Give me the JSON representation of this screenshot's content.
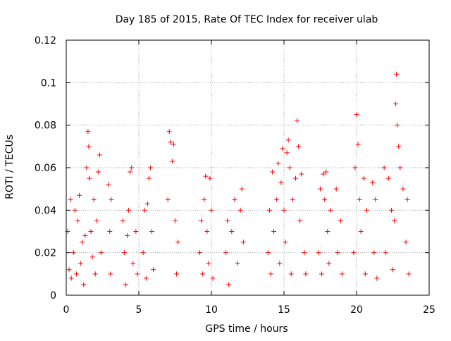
{
  "chart_data": {
    "type": "scatter",
    "title": "Day 185 of 2015, Rate Of TEC Index for receiver ulab",
    "xlabel": "GPS time / hours",
    "ylabel": "ROTI / TECUs",
    "xlim": [
      0,
      25
    ],
    "ylim": [
      0,
      0.12
    ],
    "x_ticks": [
      "0",
      "5",
      "10",
      "15",
      "20",
      "25"
    ],
    "y_ticks": [
      "0",
      "0.02",
      "0.04",
      "0.06",
      "0.08",
      "0.1",
      "0.12"
    ],
    "grid": true,
    "legend": "none",
    "marker": "plus",
    "colors": {
      "series": "#ff0000",
      "grid": "#a0a0a0",
      "axes": "#000000"
    },
    "series": [
      {
        "points": [
          [
            0.1,
            0.03
          ],
          [
            0.2,
            0.012
          ],
          [
            0.3,
            0.045
          ],
          [
            0.35,
            0.008
          ],
          [
            0.5,
            0.02
          ],
          [
            0.6,
            0.04
          ],
          [
            0.7,
            0.01
          ],
          [
            0.8,
            0.035
          ],
          [
            0.9,
            0.047
          ],
          [
            1.0,
            0.015
          ],
          [
            1.1,
            0.025
          ],
          [
            1.2,
            0.005
          ],
          [
            1.3,
            0.028
          ],
          [
            1.4,
            0.06
          ],
          [
            1.5,
            0.077
          ],
          [
            1.55,
            0.07
          ],
          [
            1.6,
            0.055
          ],
          [
            1.7,
            0.03
          ],
          [
            1.8,
            0.018
          ],
          [
            1.9,
            0.045
          ],
          [
            2.0,
            0.01
          ],
          [
            2.1,
            0.035
          ],
          [
            2.2,
            0.058
          ],
          [
            2.3,
            0.066
          ],
          [
            2.4,
            0.02
          ],
          [
            2.9,
            0.052
          ],
          [
            3.0,
            0.03
          ],
          [
            3.05,
            0.01
          ],
          [
            3.1,
            0.045
          ],
          [
            3.9,
            0.035
          ],
          [
            4.0,
            0.02
          ],
          [
            4.1,
            0.005
          ],
          [
            4.2,
            0.028
          ],
          [
            4.3,
            0.04
          ],
          [
            4.4,
            0.058
          ],
          [
            4.5,
            0.06
          ],
          [
            4.6,
            0.015
          ],
          [
            4.8,
            0.03
          ],
          [
            4.9,
            0.01
          ],
          [
            5.3,
            0.02
          ],
          [
            5.4,
            0.04
          ],
          [
            5.5,
            0.008
          ],
          [
            5.6,
            0.043
          ],
          [
            5.7,
            0.055
          ],
          [
            5.8,
            0.06
          ],
          [
            5.9,
            0.03
          ],
          [
            6.0,
            0.012
          ],
          [
            7.0,
            0.045
          ],
          [
            7.1,
            0.077
          ],
          [
            7.2,
            0.072
          ],
          [
            7.3,
            0.063
          ],
          [
            7.4,
            0.071
          ],
          [
            7.5,
            0.035
          ],
          [
            7.6,
            0.01
          ],
          [
            7.7,
            0.025
          ],
          [
            9.2,
            0.02
          ],
          [
            9.3,
            0.035
          ],
          [
            9.4,
            0.01
          ],
          [
            9.5,
            0.045
          ],
          [
            9.6,
            0.056
          ],
          [
            9.7,
            0.03
          ],
          [
            9.8,
            0.015
          ],
          [
            9.9,
            0.055
          ],
          [
            10.0,
            0.04
          ],
          [
            10.1,
            0.008
          ],
          [
            11.0,
            0.02
          ],
          [
            11.1,
            0.035
          ],
          [
            11.2,
            0.005
          ],
          [
            11.4,
            0.03
          ],
          [
            11.6,
            0.045
          ],
          [
            11.8,
            0.015
          ],
          [
            12.0,
            0.04
          ],
          [
            12.1,
            0.05
          ],
          [
            12.2,
            0.025
          ],
          [
            13.9,
            0.02
          ],
          [
            14.0,
            0.04
          ],
          [
            14.1,
            0.01
          ],
          [
            14.2,
            0.058
          ],
          [
            14.3,
            0.03
          ],
          [
            14.5,
            0.045
          ],
          [
            14.6,
            0.062
          ],
          [
            14.7,
            0.015
          ],
          [
            14.8,
            0.053
          ],
          [
            14.9,
            0.069
          ],
          [
            15.0,
            0.04
          ],
          [
            15.1,
            0.025
          ],
          [
            15.2,
            0.067
          ],
          [
            15.3,
            0.073
          ],
          [
            15.4,
            0.06
          ],
          [
            15.5,
            0.01
          ],
          [
            15.6,
            0.045
          ],
          [
            15.8,
            0.055
          ],
          [
            15.9,
            0.082
          ],
          [
            16.0,
            0.07
          ],
          [
            16.1,
            0.035
          ],
          [
            16.2,
            0.057
          ],
          [
            16.4,
            0.02
          ],
          [
            16.5,
            0.01
          ],
          [
            17.4,
            0.02
          ],
          [
            17.5,
            0.05
          ],
          [
            17.6,
            0.01
          ],
          [
            17.7,
            0.057
          ],
          [
            17.8,
            0.045
          ],
          [
            17.9,
            0.058
          ],
          [
            18.0,
            0.03
          ],
          [
            18.1,
            0.015
          ],
          [
            18.2,
            0.04
          ],
          [
            18.6,
            0.05
          ],
          [
            18.7,
            0.02
          ],
          [
            18.9,
            0.035
          ],
          [
            19.0,
            0.01
          ],
          [
            19.8,
            0.02
          ],
          [
            19.9,
            0.06
          ],
          [
            20.0,
            0.085
          ],
          [
            20.1,
            0.071
          ],
          [
            20.2,
            0.045
          ],
          [
            20.3,
            0.03
          ],
          [
            20.5,
            0.055
          ],
          [
            20.6,
            0.01
          ],
          [
            20.7,
            0.04
          ],
          [
            21.1,
            0.053
          ],
          [
            21.2,
            0.02
          ],
          [
            21.3,
            0.045
          ],
          [
            21.4,
            0.008
          ],
          [
            21.9,
            0.06
          ],
          [
            22.0,
            0.02
          ],
          [
            22.2,
            0.055
          ],
          [
            22.4,
            0.04
          ],
          [
            22.5,
            0.012
          ],
          [
            22.6,
            0.035
          ],
          [
            22.7,
            0.09
          ],
          [
            22.75,
            0.104
          ],
          [
            22.8,
            0.08
          ],
          [
            22.9,
            0.07
          ],
          [
            23.0,
            0.06
          ],
          [
            23.2,
            0.05
          ],
          [
            23.4,
            0.025
          ],
          [
            23.5,
            0.045
          ],
          [
            23.6,
            0.01
          ]
        ]
      }
    ]
  }
}
